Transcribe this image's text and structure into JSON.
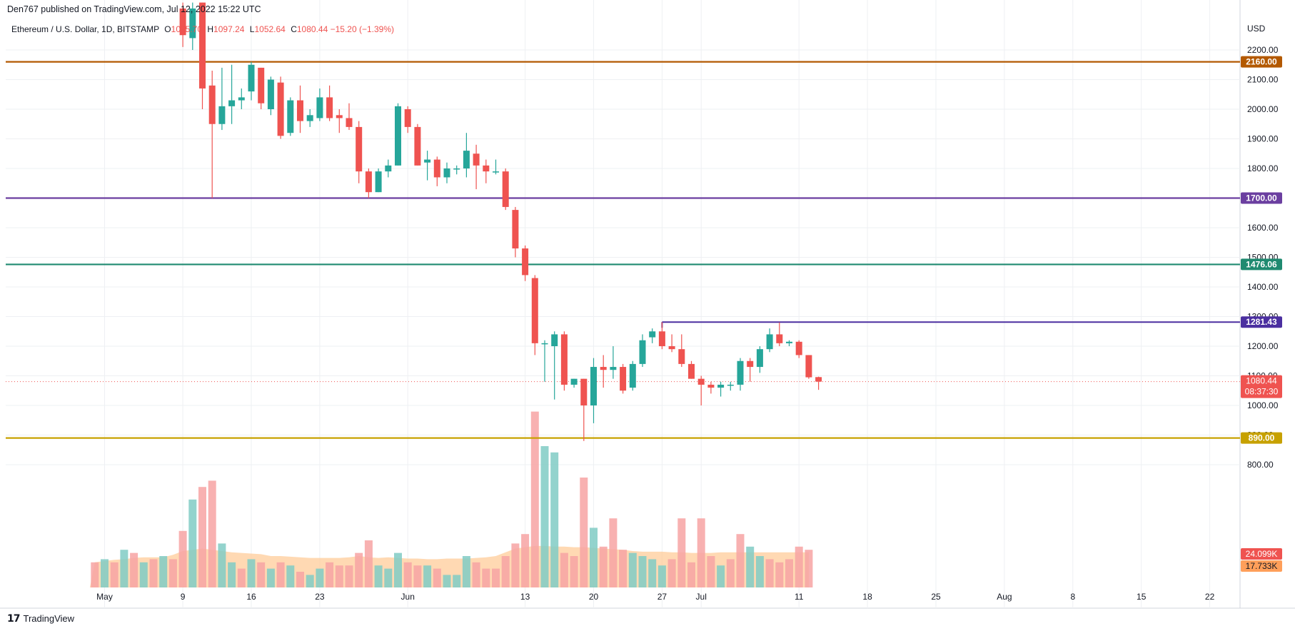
{
  "header": {
    "published": "Den767 published on TradingView.com, Jul 12, 2022 15:22 UTC"
  },
  "legend": {
    "symbol": "Ethereum / U.S. Dollar, 1D, BITSTAMP",
    "open_label": "O",
    "open": "1095.70",
    "high_label": "H",
    "high": "1097.24",
    "low_label": "L",
    "low": "1052.64",
    "close_label": "C",
    "close": "1080.44",
    "change": "−15.20 (−1.39%)"
  },
  "footer": {
    "brand": "TradingView"
  },
  "chart_data": {
    "type": "candlestick",
    "currency": "USD",
    "y_ticks": [
      800,
      900,
      1000,
      1100,
      1200,
      1300,
      1400,
      1500,
      1600,
      1700,
      1800,
      1900,
      2000,
      2100,
      2200
    ],
    "ylim": [
      760,
      2360
    ],
    "x_labels": [
      {
        "day": 0,
        "text": "May"
      },
      {
        "day": 8,
        "text": "9"
      },
      {
        "day": 15,
        "text": "16"
      },
      {
        "day": 22,
        "text": "23"
      },
      {
        "day": 31,
        "text": "Jun"
      },
      {
        "day": 43,
        "text": "13"
      },
      {
        "day": 50,
        "text": "20"
      },
      {
        "day": 57,
        "text": "27"
      },
      {
        "day": 61,
        "text": "Jul"
      },
      {
        "day": 71,
        "text": "11"
      },
      {
        "day": 78,
        "text": "18"
      },
      {
        "day": 85,
        "text": "25"
      },
      {
        "day": 92,
        "text": "Aug"
      },
      {
        "day": 99,
        "text": "8"
      },
      {
        "day": 106,
        "text": "15"
      },
      {
        "day": 113,
        "text": "22"
      }
    ],
    "candles": [
      {
        "day": 8,
        "o": 2340,
        "h": 2360,
        "l": 2210,
        "c": 2250
      },
      {
        "day": 9,
        "o": 2240,
        "h": 2360,
        "l": 2200,
        "c": 2340
      },
      {
        "day": 10,
        "o": 2360,
        "h": 2360,
        "l": 2000,
        "c": 2070
      },
      {
        "day": 11,
        "o": 2080,
        "h": 2130,
        "l": 1700,
        "c": 1950
      },
      {
        "day": 12,
        "o": 1950,
        "h": 2140,
        "l": 1930,
        "c": 2010
      },
      {
        "day": 13,
        "o": 2010,
        "h": 2150,
        "l": 1950,
        "c": 2030
      },
      {
        "day": 14,
        "o": 2030,
        "h": 2070,
        "l": 2000,
        "c": 2040
      },
      {
        "day": 15,
        "o": 2060,
        "h": 2160,
        "l": 2030,
        "c": 2150
      },
      {
        "day": 16,
        "o": 2140,
        "h": 2140,
        "l": 2000,
        "c": 2020
      },
      {
        "day": 17,
        "o": 2000,
        "h": 2110,
        "l": 1980,
        "c": 2100
      },
      {
        "day": 18,
        "o": 2090,
        "h": 2110,
        "l": 1900,
        "c": 1910
      },
      {
        "day": 19,
        "o": 1920,
        "h": 2040,
        "l": 1910,
        "c": 2030
      },
      {
        "day": 20,
        "o": 2030,
        "h": 2080,
        "l": 1920,
        "c": 1960
      },
      {
        "day": 21,
        "o": 1960,
        "h": 2000,
        "l": 1940,
        "c": 1980
      },
      {
        "day": 22,
        "o": 1970,
        "h": 2070,
        "l": 1960,
        "c": 2040
      },
      {
        "day": 23,
        "o": 2040,
        "h": 2080,
        "l": 1960,
        "c": 1970
      },
      {
        "day": 24,
        "o": 1980,
        "h": 2000,
        "l": 1920,
        "c": 1970
      },
      {
        "day": 25,
        "o": 1970,
        "h": 2020,
        "l": 1930,
        "c": 1940
      },
      {
        "day": 26,
        "o": 1940,
        "h": 1960,
        "l": 1750,
        "c": 1790
      },
      {
        "day": 27,
        "o": 1790,
        "h": 1800,
        "l": 1700,
        "c": 1720
      },
      {
        "day": 28,
        "o": 1720,
        "h": 1800,
        "l": 1720,
        "c": 1790
      },
      {
        "day": 29,
        "o": 1790,
        "h": 1830,
        "l": 1770,
        "c": 1810
      },
      {
        "day": 30,
        "o": 1810,
        "h": 2020,
        "l": 1810,
        "c": 2010
      },
      {
        "day": 31,
        "o": 2000,
        "h": 2010,
        "l": 1920,
        "c": 1940
      },
      {
        "day": 32,
        "o": 1940,
        "h": 1950,
        "l": 1810,
        "c": 1810
      },
      {
        "day": 33,
        "o": 1820,
        "h": 1860,
        "l": 1760,
        "c": 1830
      },
      {
        "day": 34,
        "o": 1830,
        "h": 1840,
        "l": 1740,
        "c": 1770
      },
      {
        "day": 35,
        "o": 1770,
        "h": 1820,
        "l": 1750,
        "c": 1800
      },
      {
        "day": 36,
        "o": 1800,
        "h": 1810,
        "l": 1780,
        "c": 1800
      },
      {
        "day": 37,
        "o": 1800,
        "h": 1920,
        "l": 1770,
        "c": 1860
      },
      {
        "day": 38,
        "o": 1850,
        "h": 1880,
        "l": 1730,
        "c": 1810
      },
      {
        "day": 39,
        "o": 1810,
        "h": 1830,
        "l": 1750,
        "c": 1790
      },
      {
        "day": 40,
        "o": 1790,
        "h": 1830,
        "l": 1780,
        "c": 1790
      },
      {
        "day": 41,
        "o": 1790,
        "h": 1800,
        "l": 1660,
        "c": 1670
      },
      {
        "day": 42,
        "o": 1660,
        "h": 1670,
        "l": 1500,
        "c": 1530
      },
      {
        "day": 43,
        "o": 1530,
        "h": 1540,
        "l": 1420,
        "c": 1440
      },
      {
        "day": 44,
        "o": 1430,
        "h": 1440,
        "l": 1170,
        "c": 1210
      },
      {
        "day": 45,
        "o": 1210,
        "h": 1220,
        "l": 1080,
        "c": 1210
      },
      {
        "day": 46,
        "o": 1200,
        "h": 1250,
        "l": 1020,
        "c": 1240
      },
      {
        "day": 47,
        "o": 1240,
        "h": 1250,
        "l": 1050,
        "c": 1070
      },
      {
        "day": 48,
        "o": 1070,
        "h": 1090,
        "l": 1060,
        "c": 1090
      },
      {
        "day": 49,
        "o": 1090,
        "h": 1090,
        "l": 880,
        "c": 1000
      },
      {
        "day": 50,
        "o": 1000,
        "h": 1160,
        "l": 940,
        "c": 1130
      },
      {
        "day": 51,
        "o": 1130,
        "h": 1170,
        "l": 1060,
        "c": 1120
      },
      {
        "day": 52,
        "o": 1120,
        "h": 1200,
        "l": 1090,
        "c": 1130
      },
      {
        "day": 53,
        "o": 1130,
        "h": 1140,
        "l": 1040,
        "c": 1050
      },
      {
        "day": 54,
        "o": 1060,
        "h": 1150,
        "l": 1050,
        "c": 1140
      },
      {
        "day": 55,
        "o": 1140,
        "h": 1240,
        "l": 1130,
        "c": 1220
      },
      {
        "day": 56,
        "o": 1230,
        "h": 1260,
        "l": 1210,
        "c": 1250
      },
      {
        "day": 57,
        "o": 1250,
        "h": 1281,
        "l": 1190,
        "c": 1200
      },
      {
        "day": 58,
        "o": 1200,
        "h": 1240,
        "l": 1180,
        "c": 1190
      },
      {
        "day": 59,
        "o": 1190,
        "h": 1240,
        "l": 1130,
        "c": 1140
      },
      {
        "day": 60,
        "o": 1140,
        "h": 1150,
        "l": 1090,
        "c": 1090
      },
      {
        "day": 61,
        "o": 1090,
        "h": 1100,
        "l": 1000,
        "c": 1070
      },
      {
        "day": 62,
        "o": 1070,
        "h": 1080,
        "l": 1040,
        "c": 1060
      },
      {
        "day": 63,
        "o": 1060,
        "h": 1080,
        "l": 1030,
        "c": 1070
      },
      {
        "day": 64,
        "o": 1070,
        "h": 1080,
        "l": 1050,
        "c": 1070
      },
      {
        "day": 65,
        "o": 1070,
        "h": 1160,
        "l": 1050,
        "c": 1150
      },
      {
        "day": 66,
        "o": 1150,
        "h": 1160,
        "l": 1080,
        "c": 1130
      },
      {
        "day": 67,
        "o": 1130,
        "h": 1200,
        "l": 1110,
        "c": 1190
      },
      {
        "day": 68,
        "o": 1190,
        "h": 1260,
        "l": 1180,
        "c": 1240
      },
      {
        "day": 69,
        "o": 1240,
        "h": 1280,
        "l": 1200,
        "c": 1210
      },
      {
        "day": 70,
        "o": 1210,
        "h": 1220,
        "l": 1200,
        "c": 1215
      },
      {
        "day": 71,
        "o": 1215,
        "h": 1220,
        "l": 1160,
        "c": 1170
      },
      {
        "day": 72,
        "o": 1170,
        "h": 1170,
        "l": 1090,
        "c": 1095
      },
      {
        "day": 73,
        "o": 1095.7,
        "h": 1097.24,
        "l": 1052.64,
        "c": 1080.44
      }
    ],
    "volume_ticks": [
      600,
      700,
      800
    ],
    "volume": [
      {
        "day": -1,
        "v": 40,
        "up": false
      },
      {
        "day": 0,
        "v": 45,
        "up": true
      },
      {
        "day": 1,
        "v": 40,
        "up": false
      },
      {
        "day": 2,
        "v": 60,
        "up": true
      },
      {
        "day": 3,
        "v": 55,
        "up": false
      },
      {
        "day": 4,
        "v": 40,
        "up": true
      },
      {
        "day": 5,
        "v": 45,
        "up": false
      },
      {
        "day": 6,
        "v": 50,
        "up": true
      },
      {
        "day": 7,
        "v": 45,
        "up": false
      },
      {
        "day": 8,
        "v": 90,
        "up": false
      },
      {
        "day": 9,
        "v": 140,
        "up": true
      },
      {
        "day": 10,
        "v": 160,
        "up": false
      },
      {
        "day": 11,
        "v": 170,
        "up": false
      },
      {
        "day": 12,
        "v": 70,
        "up": true
      },
      {
        "day": 13,
        "v": 40,
        "up": true
      },
      {
        "day": 14,
        "v": 30,
        "up": false
      },
      {
        "day": 15,
        "v": 45,
        "up": true
      },
      {
        "day": 16,
        "v": 40,
        "up": false
      },
      {
        "day": 17,
        "v": 30,
        "up": true
      },
      {
        "day": 18,
        "v": 40,
        "up": false
      },
      {
        "day": 19,
        "v": 35,
        "up": true
      },
      {
        "day": 20,
        "v": 25,
        "up": false
      },
      {
        "day": 21,
        "v": 20,
        "up": true
      },
      {
        "day": 22,
        "v": 30,
        "up": true
      },
      {
        "day": 23,
        "v": 40,
        "up": false
      },
      {
        "day": 24,
        "v": 35,
        "up": false
      },
      {
        "day": 25,
        "v": 35,
        "up": false
      },
      {
        "day": 26,
        "v": 55,
        "up": false
      },
      {
        "day": 27,
        "v": 75,
        "up": false
      },
      {
        "day": 28,
        "v": 35,
        "up": true
      },
      {
        "day": 29,
        "v": 30,
        "up": true
      },
      {
        "day": 30,
        "v": 55,
        "up": true
      },
      {
        "day": 31,
        "v": 40,
        "up": false
      },
      {
        "day": 32,
        "v": 35,
        "up": false
      },
      {
        "day": 33,
        "v": 35,
        "up": true
      },
      {
        "day": 34,
        "v": 30,
        "up": false
      },
      {
        "day": 35,
        "v": 20,
        "up": true
      },
      {
        "day": 36,
        "v": 20,
        "up": true
      },
      {
        "day": 37,
        "v": 50,
        "up": true
      },
      {
        "day": 38,
        "v": 40,
        "up": false
      },
      {
        "day": 39,
        "v": 30,
        "up": false
      },
      {
        "day": 40,
        "v": 30,
        "up": false
      },
      {
        "day": 41,
        "v": 50,
        "up": false
      },
      {
        "day": 42,
        "v": 70,
        "up": false
      },
      {
        "day": 43,
        "v": 85,
        "up": false
      },
      {
        "day": 44,
        "v": 280,
        "up": false
      },
      {
        "day": 45,
        "v": 225,
        "up": true
      },
      {
        "day": 46,
        "v": 215,
        "up": true
      },
      {
        "day": 47,
        "v": 55,
        "up": false
      },
      {
        "day": 48,
        "v": 50,
        "up": false
      },
      {
        "day": 49,
        "v": 175,
        "up": false
      },
      {
        "day": 50,
        "v": 95,
        "up": true
      },
      {
        "day": 51,
        "v": 65,
        "up": false
      },
      {
        "day": 52,
        "v": 110,
        "up": false
      },
      {
        "day": 53,
        "v": 60,
        "up": false
      },
      {
        "day": 54,
        "v": 55,
        "up": true
      },
      {
        "day": 55,
        "v": 50,
        "up": true
      },
      {
        "day": 56,
        "v": 45,
        "up": true
      },
      {
        "day": 57,
        "v": 35,
        "up": true
      },
      {
        "day": 58,
        "v": 45,
        "up": false
      },
      {
        "day": 59,
        "v": 110,
        "up": false
      },
      {
        "day": 60,
        "v": 40,
        "up": false
      },
      {
        "day": 61,
        "v": 110,
        "up": false
      },
      {
        "day": 62,
        "v": 50,
        "up": false
      },
      {
        "day": 63,
        "v": 35,
        "up": true
      },
      {
        "day": 64,
        "v": 45,
        "up": false
      },
      {
        "day": 65,
        "v": 85,
        "up": false
      },
      {
        "day": 66,
        "v": 65,
        "up": true
      },
      {
        "day": 67,
        "v": 50,
        "up": true
      },
      {
        "day": 68,
        "v": 45,
        "up": false
      },
      {
        "day": 69,
        "v": 40,
        "up": false
      },
      {
        "day": 70,
        "v": 45,
        "up": false
      },
      {
        "day": 71,
        "v": 65,
        "up": false
      },
      {
        "day": 72,
        "v": 60,
        "up": false
      }
    ],
    "volume_ma": [
      40,
      42,
      44,
      45,
      47,
      48,
      48,
      48,
      52,
      58,
      60,
      62,
      60,
      58,
      56,
      55,
      54,
      53,
      50,
      50,
      49,
      48,
      47,
      47,
      47,
      47,
      48,
      50,
      48,
      47,
      48,
      47,
      46,
      46,
      45,
      45,
      46,
      46,
      46,
      47,
      48,
      50,
      56,
      62,
      64,
      66,
      66,
      65,
      65,
      64,
      64,
      63,
      62,
      61,
      60,
      58,
      57,
      57,
      57,
      56,
      56,
      55,
      55,
      55,
      56,
      56,
      56,
      56,
      56,
      56,
      56,
      56,
      56,
      56
    ],
    "h_lines": [
      {
        "price": 2160,
        "label": "2160.00",
        "color": "#b35900",
        "bg": "#b35900"
      },
      {
        "price": 1700,
        "label": "1700.00",
        "color": "#6b3fa0",
        "bg": "#6b3fa0"
      },
      {
        "price": 1476.06,
        "label": "1476.06",
        "color": "#1f8a70",
        "bg": "#1f8a70"
      },
      {
        "price": 890,
        "label": "890.00",
        "color": "#c7a100",
        "bg": "#c7a100"
      }
    ],
    "ray": {
      "price": 1281.43,
      "from_day": 57,
      "label": "1281.43",
      "color": "#4b2fa0"
    },
    "last_price": {
      "price": 1080.44,
      "label": "1080.44",
      "countdown": "08:37:30",
      "color": "#ef5350"
    },
    "volume_labels": {
      "volume": "24.099K",
      "ma": "17.733K",
      "volume_color": "#ef5350",
      "ma_color": "#ff9f5a"
    },
    "colors": {
      "up": "#26a69a",
      "down": "#ef5350",
      "up_vol": "#80cbc4",
      "down_vol": "#f7a3a3",
      "ma_fill": "#ffcc99",
      "grid": "#eef0f3"
    }
  }
}
